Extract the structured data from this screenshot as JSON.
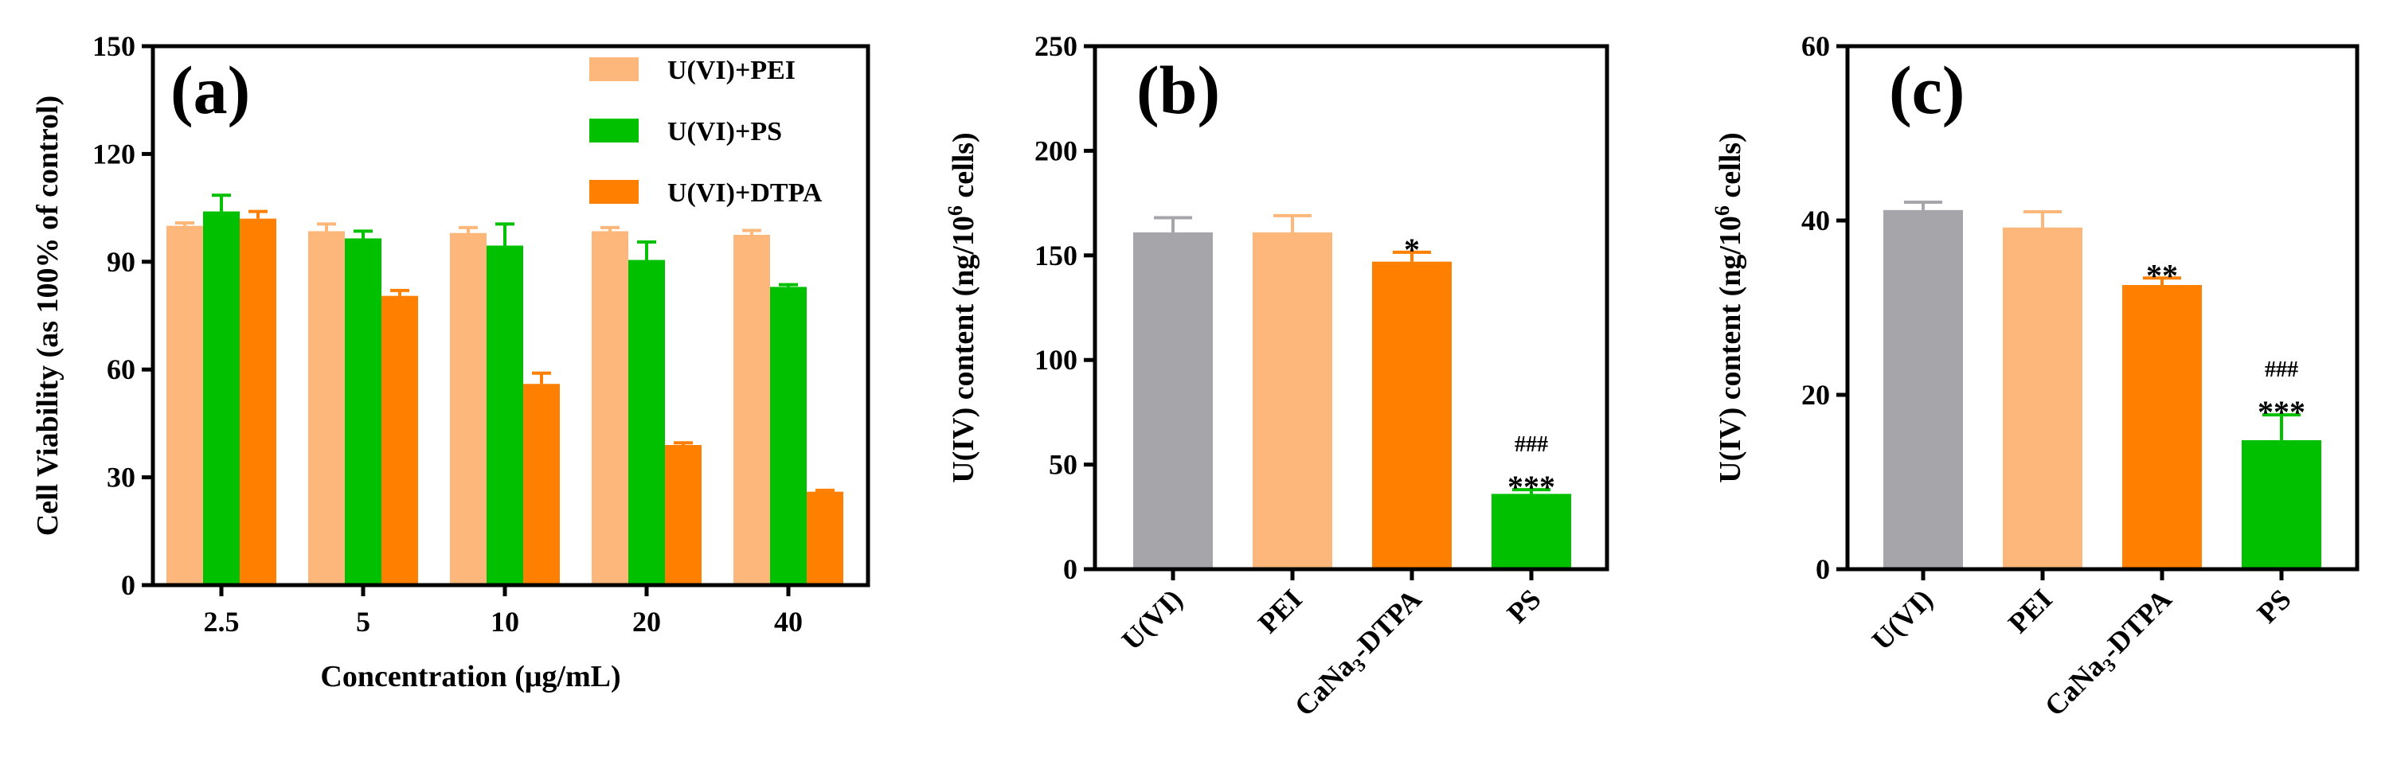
{
  "chart_data": [
    {
      "type": "bar",
      "panel_label": "(a)",
      "title": "",
      "xlabel": "Concentration (μg/mL)",
      "ylabel": "Cell Viability (as 100% of control)",
      "ylim": [
        0,
        150
      ],
      "yticks": [
        0,
        30,
        60,
        90,
        120,
        150
      ],
      "categories": [
        "2.5",
        "5",
        "10",
        "20",
        "40"
      ],
      "series": [
        {
          "name": "U(VI)+PEI",
          "color": "#FDB77B",
          "values": [
            100,
            98.5,
            98,
            98.5,
            97.5
          ],
          "errors": [
            0.8,
            2,
            1.5,
            1,
            1.2
          ]
        },
        {
          "name": "U(VI)+PS",
          "color": "#00C000",
          "values": [
            104,
            96.5,
            94.5,
            90.5,
            83
          ],
          "errors": [
            4.5,
            2,
            6,
            5,
            0.6
          ]
        },
        {
          "name": "U(VI)+DTPA",
          "color": "#FF8000",
          "values": [
            102,
            80.5,
            56,
            39,
            26
          ],
          "errors": [
            2,
            1.5,
            3,
            0.6,
            0.4
          ]
        }
      ],
      "legend_position": "top-right"
    },
    {
      "type": "bar",
      "panel_label": "(b)",
      "title": "",
      "xlabel": "",
      "ylabel_parts": {
        "pre": "U(IV) content (ng/10",
        "sup": "6",
        "post": " cells)"
      },
      "ylim": [
        0,
        250
      ],
      "yticks": [
        0,
        50,
        100,
        150,
        200,
        250
      ],
      "categories": [
        {
          "pre": "U(VI)",
          "sub": "",
          "post": ""
        },
        {
          "pre": "PEI",
          "sub": "",
          "post": ""
        },
        {
          "pre": "CaNa",
          "sub": "3",
          "post": "-DTPA"
        },
        {
          "pre": "PS",
          "sub": "",
          "post": ""
        }
      ],
      "colors": [
        "#A6A5AA",
        "#FDB77B",
        "#FF8000",
        "#00C000"
      ],
      "values": [
        161,
        161,
        147,
        36
      ],
      "errors": [
        7,
        8,
        4.5,
        2
      ],
      "annotations": [
        {
          "index": 2,
          "lines": [
            "*"
          ]
        },
        {
          "index": 3,
          "lines": [
            "###",
            "***"
          ]
        }
      ]
    },
    {
      "type": "bar",
      "panel_label": "(c)",
      "title": "",
      "xlabel": "",
      "ylabel_parts": {
        "pre": "U(IV) content (ng/10",
        "sup": "6",
        "post": " cells)"
      },
      "ylim": [
        0,
        60
      ],
      "yticks": [
        0,
        20,
        40,
        60
      ],
      "categories": [
        {
          "pre": "U(VI)",
          "sub": "",
          "post": ""
        },
        {
          "pre": "PEI",
          "sub": "",
          "post": ""
        },
        {
          "pre": "CaNa",
          "sub": "3",
          "post": "-DTPA"
        },
        {
          "pre": "PS",
          "sub": "",
          "post": ""
        }
      ],
      "colors": [
        "#A6A5AA",
        "#FDB77B",
        "#FF8000",
        "#00C000"
      ],
      "values": [
        41.2,
        39.2,
        32.6,
        14.8
      ],
      "errors": [
        0.9,
        1.8,
        0.8,
        2.9
      ],
      "annotations": [
        {
          "index": 2,
          "lines": [
            "**"
          ]
        },
        {
          "index": 3,
          "lines": [
            "###",
            "***"
          ]
        }
      ]
    }
  ]
}
